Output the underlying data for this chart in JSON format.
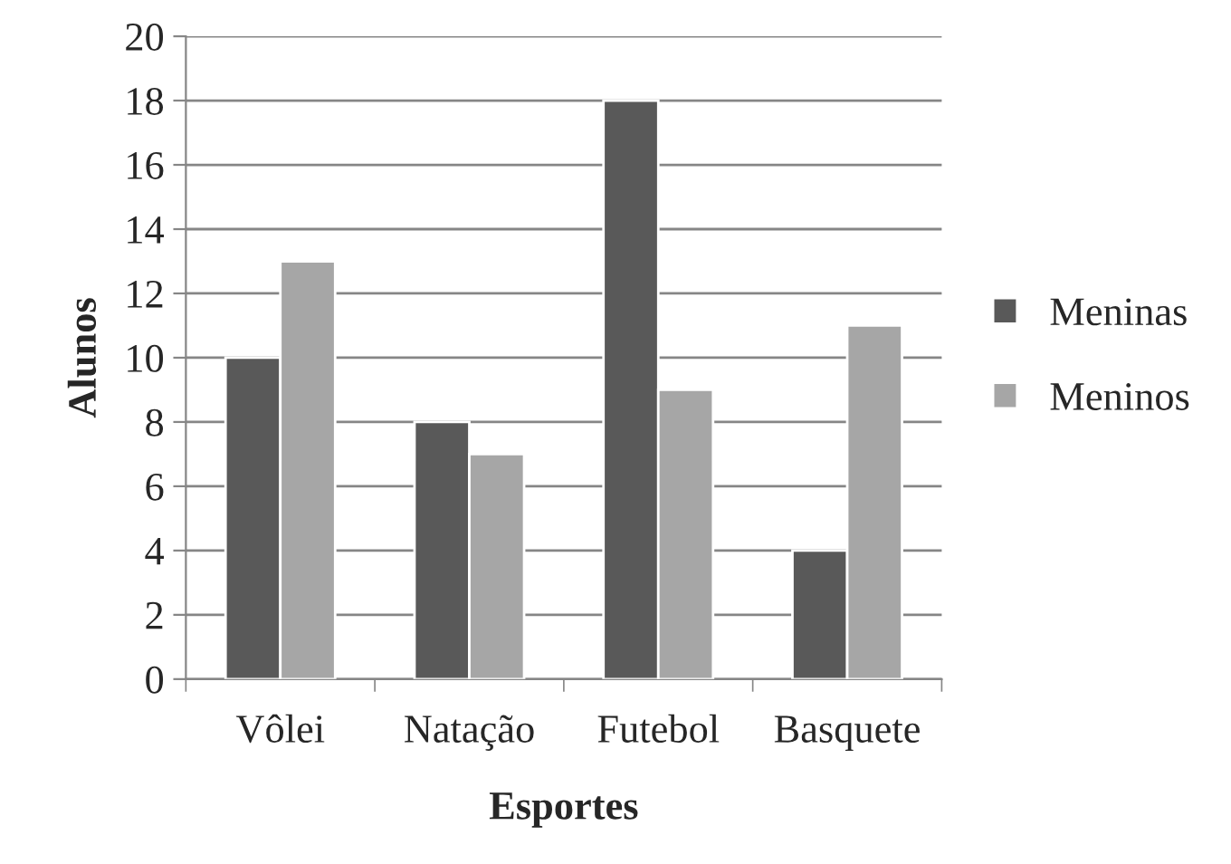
{
  "chart_data": {
    "type": "bar",
    "xlabel": "Esportes",
    "ylabel": "Alunos",
    "categories": [
      "Vôlei",
      "Natação",
      "Futebol",
      "Basquete"
    ],
    "series": [
      {
        "name": "Meninas",
        "color": "#595959",
        "values": [
          10,
          8,
          18,
          4
        ]
      },
      {
        "name": "Meninos",
        "color": "#a6a6a6",
        "values": [
          13,
          7,
          9,
          11
        ]
      }
    ],
    "ylim": [
      0,
      20
    ],
    "yticks": [
      0,
      2,
      4,
      6,
      8,
      10,
      12,
      14,
      16,
      18,
      20
    ],
    "grid": "y",
    "legend": "right"
  }
}
